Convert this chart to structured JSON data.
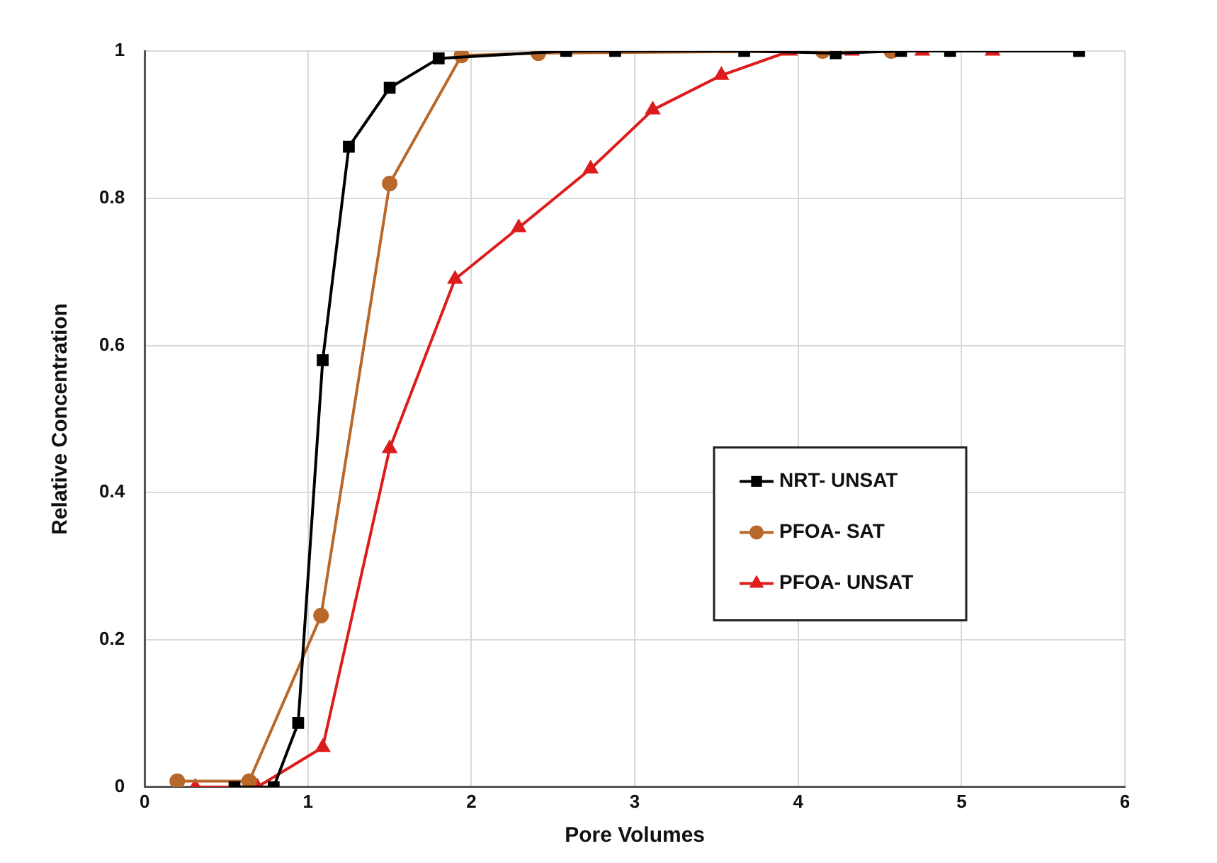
{
  "chart_data": {
    "type": "line",
    "xlabel": "Pore Volumes",
    "ylabel": "Relative Concentration",
    "xlim": [
      0,
      6
    ],
    "xticks": [
      0,
      1,
      2,
      3,
      4,
      5,
      6
    ],
    "ylim": [
      0,
      1
    ],
    "yticks": [
      0,
      0.2,
      0.4,
      0.6,
      0.8,
      1
    ],
    "grid": true,
    "legend": "right",
    "line_style": "solid",
    "series": [
      {
        "name": "NRT- UNSAT",
        "color": "#000000",
        "marker": "square",
        "x": [
          0.55,
          0.79,
          0.94,
          1.09,
          1.25,
          1.5,
          1.8,
          2.58,
          2.88,
          3.67,
          4.23,
          4.63,
          4.93,
          5.72
        ],
        "values": [
          0,
          0,
          0.087,
          0.58,
          0.87,
          0.95,
          0.99,
          1,
          1,
          1,
          0.997,
          1,
          1,
          1
        ]
      },
      {
        "name": "PFOA- SAT",
        "color": "#b8682a",
        "marker": "circle",
        "x": [
          0.2,
          0.64,
          1.08,
          1.5,
          1.94,
          2.41,
          4.15,
          4.57
        ],
        "values": [
          0.008,
          0.008,
          0.233,
          0.82,
          0.994,
          0.997,
          1,
          1
        ]
      },
      {
        "name": "PFOA- UNSAT",
        "color": "#dd1c1c",
        "marker": "triangle",
        "x": [
          0.31,
          0.69,
          1.09,
          1.5,
          1.9,
          2.29,
          2.73,
          3.11,
          3.53,
          3.95,
          4.33,
          4.76,
          5.19
        ],
        "values": [
          0,
          0,
          0.054,
          0.46,
          0.69,
          0.76,
          0.84,
          0.92,
          0.967,
          1,
          1,
          1,
          1
        ]
      }
    ]
  }
}
